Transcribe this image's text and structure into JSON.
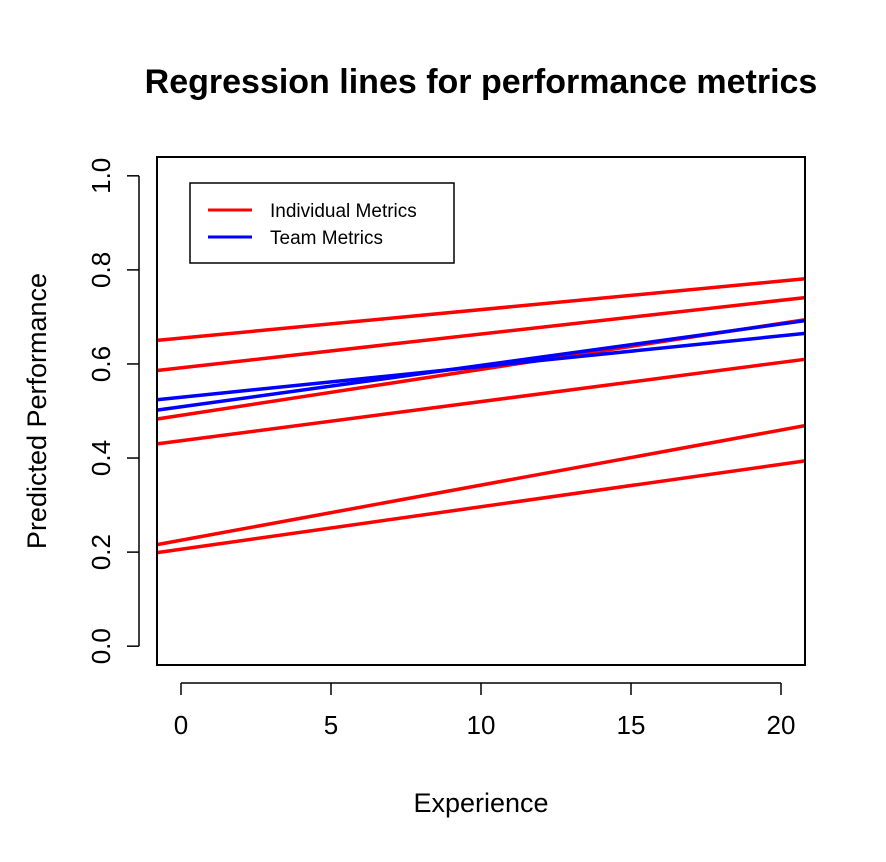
{
  "chart_data": {
    "type": "line",
    "title": "Regression lines for performance metrics",
    "xlabel": "Experience",
    "ylabel": "Predicted Performance",
    "xlim": [
      -0.8,
      20.8
    ],
    "ylim": [
      -0.04,
      1.04
    ],
    "x_ticks": [
      "0",
      "5",
      "10",
      "15",
      "20"
    ],
    "y_ticks": [
      "0.0",
      "0.2",
      "0.4",
      "0.6",
      "0.8",
      "1.0"
    ],
    "grid": false,
    "legend": {
      "position": "top-left",
      "entries": [
        {
          "label": "Individual Metrics",
          "color": "#ff0000"
        },
        {
          "label": "Team Metrics",
          "color": "#0000ff"
        }
      ]
    },
    "series": [
      {
        "group": "Individual Metrics",
        "color": "#ff0000",
        "x": [
          -0.8,
          20.8
        ],
        "y": [
          0.65,
          0.781
        ]
      },
      {
        "group": "Individual Metrics",
        "color": "#ff0000",
        "x": [
          -0.8,
          20.8
        ],
        "y": [
          0.586,
          0.741
        ]
      },
      {
        "group": "Individual Metrics",
        "color": "#ff0000",
        "x": [
          -0.8,
          20.8
        ],
        "y": [
          0.483,
          0.694
        ]
      },
      {
        "group": "Individual Metrics",
        "color": "#ff0000",
        "x": [
          -0.8,
          20.8
        ],
        "y": [
          0.43,
          0.61
        ]
      },
      {
        "group": "Individual Metrics",
        "color": "#ff0000",
        "x": [
          -0.8,
          20.8
        ],
        "y": [
          0.216,
          0.469
        ]
      },
      {
        "group": "Individual Metrics",
        "color": "#ff0000",
        "x": [
          -0.8,
          20.8
        ],
        "y": [
          0.199,
          0.394
        ]
      },
      {
        "group": "Team Metrics",
        "color": "#0000ff",
        "x": [
          -0.8,
          20.8
        ],
        "y": [
          0.524,
          0.665
        ]
      },
      {
        "group": "Team Metrics",
        "color": "#0000ff",
        "x": [
          -0.8,
          20.8
        ],
        "y": [
          0.502,
          0.692
        ]
      }
    ]
  }
}
